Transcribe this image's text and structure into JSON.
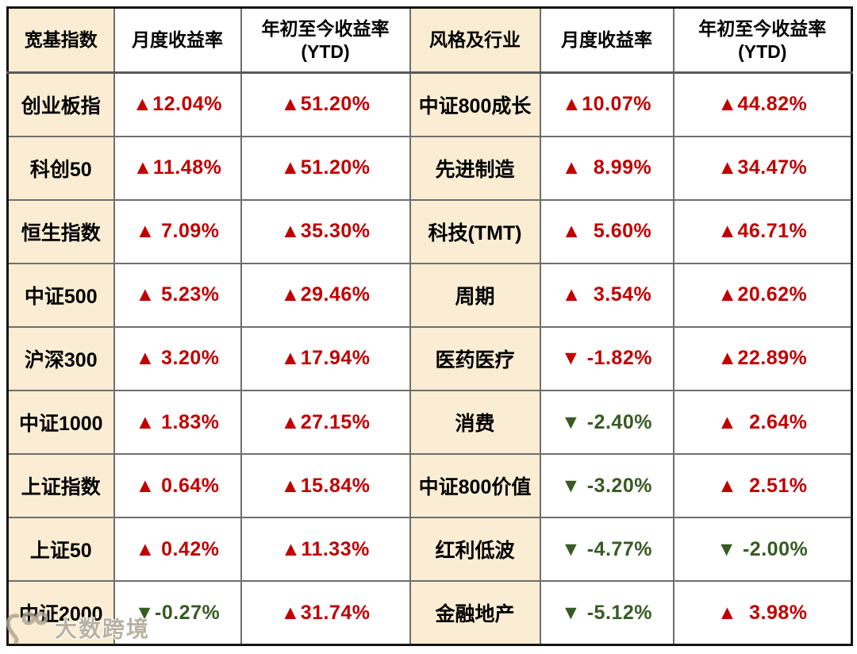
{
  "colors": {
    "positive": "#C00000",
    "negative": "#375B23",
    "highlight_bg": "#FAEDD3"
  },
  "table": {
    "headers": [
      {
        "text": "宽基指数"
      },
      {
        "text": "月度收益率"
      },
      {
        "line1": "年初至今收益率",
        "line2": "(YTD)"
      },
      {
        "text": "风格及行业"
      },
      {
        "text": "月度收益率"
      },
      {
        "line1": "年初至今收益率",
        "line2": "(YTD)"
      }
    ],
    "rows": [
      {
        "cells": [
          {
            "kind": "index-name",
            "type": "name",
            "text": "创业板指"
          },
          {
            "kind": "monthly-return",
            "type": "value",
            "color": "red",
            "text": "▲12.04%"
          },
          {
            "kind": "ytd-return",
            "type": "value",
            "color": "red",
            "text": "▲51.20%"
          },
          {
            "kind": "sector-name",
            "type": "name",
            "text": "中证800成长"
          },
          {
            "kind": "monthly-return",
            "type": "value",
            "color": "red",
            "text": "▲10.07%"
          },
          {
            "kind": "ytd-return",
            "type": "value",
            "color": "red",
            "text": "▲44.82%"
          }
        ]
      },
      {
        "cells": [
          {
            "kind": "index-name",
            "type": "name",
            "text": "科创50"
          },
          {
            "kind": "monthly-return",
            "type": "value",
            "color": "red",
            "text": "▲11.48%"
          },
          {
            "kind": "ytd-return",
            "type": "value",
            "color": "red",
            "text": "▲51.20%"
          },
          {
            "kind": "sector-name",
            "type": "name",
            "text": "先进制造"
          },
          {
            "kind": "monthly-return",
            "type": "value",
            "color": "red",
            "text": "▲  8.99%"
          },
          {
            "kind": "ytd-return",
            "type": "value",
            "color": "red",
            "text": "▲34.47%"
          }
        ]
      },
      {
        "cells": [
          {
            "kind": "index-name",
            "type": "name",
            "text": "恒生指数"
          },
          {
            "kind": "monthly-return",
            "type": "value",
            "color": "red",
            "text": "▲ 7.09%"
          },
          {
            "kind": "ytd-return",
            "type": "value",
            "color": "red",
            "text": "▲35.30%"
          },
          {
            "kind": "sector-name",
            "type": "name",
            "text": "科技(TMT)"
          },
          {
            "kind": "monthly-return",
            "type": "value",
            "color": "red",
            "text": "▲  5.60%"
          },
          {
            "kind": "ytd-return",
            "type": "value",
            "color": "red",
            "text": "▲46.71%"
          }
        ]
      },
      {
        "cells": [
          {
            "kind": "index-name",
            "type": "name",
            "text": "中证500"
          },
          {
            "kind": "monthly-return",
            "type": "value",
            "color": "red",
            "text": "▲ 5.23%"
          },
          {
            "kind": "ytd-return",
            "type": "value",
            "color": "red",
            "text": "▲29.46%"
          },
          {
            "kind": "sector-name",
            "type": "name",
            "text": "周期"
          },
          {
            "kind": "monthly-return",
            "type": "value",
            "color": "red",
            "text": "▲  3.54%"
          },
          {
            "kind": "ytd-return",
            "type": "value",
            "color": "red",
            "text": "▲20.62%"
          }
        ]
      },
      {
        "cells": [
          {
            "kind": "index-name",
            "type": "name",
            "text": "沪深300"
          },
          {
            "kind": "monthly-return",
            "type": "value",
            "color": "red",
            "text": "▲ 3.20%"
          },
          {
            "kind": "ytd-return",
            "type": "value",
            "color": "red",
            "text": "▲17.94%"
          },
          {
            "kind": "sector-name",
            "type": "name",
            "text": "医药医疗"
          },
          {
            "kind": "monthly-return",
            "type": "value",
            "color": "red",
            "text": "▼ -1.82%"
          },
          {
            "kind": "ytd-return",
            "type": "value",
            "color": "red",
            "text": "▲22.89%"
          }
        ]
      },
      {
        "cells": [
          {
            "kind": "index-name",
            "type": "name",
            "text": "中证1000"
          },
          {
            "kind": "monthly-return",
            "type": "value",
            "color": "red",
            "text": "▲ 1.83%"
          },
          {
            "kind": "ytd-return",
            "type": "value",
            "color": "red",
            "text": "▲27.15%"
          },
          {
            "kind": "sector-name",
            "type": "name",
            "text": "消费"
          },
          {
            "kind": "monthly-return",
            "type": "value",
            "color": "green",
            "text": "▼ -2.40%"
          },
          {
            "kind": "ytd-return",
            "type": "value",
            "color": "red",
            "text": "▲  2.64%"
          }
        ]
      },
      {
        "cells": [
          {
            "kind": "index-name",
            "type": "name",
            "text": "上证指数"
          },
          {
            "kind": "monthly-return",
            "type": "value",
            "color": "red",
            "text": "▲ 0.64%"
          },
          {
            "kind": "ytd-return",
            "type": "value",
            "color": "red",
            "text": "▲15.84%"
          },
          {
            "kind": "sector-name",
            "type": "name",
            "text": "中证800价值"
          },
          {
            "kind": "monthly-return",
            "type": "value",
            "color": "green",
            "text": "▼ -3.20%"
          },
          {
            "kind": "ytd-return",
            "type": "value",
            "color": "red",
            "text": "▲  2.51%"
          }
        ]
      },
      {
        "cells": [
          {
            "kind": "index-name",
            "type": "name",
            "text": "上证50"
          },
          {
            "kind": "monthly-return",
            "type": "value",
            "color": "red",
            "text": "▲ 0.42%"
          },
          {
            "kind": "ytd-return",
            "type": "value",
            "color": "red",
            "text": "▲11.33%"
          },
          {
            "kind": "sector-name",
            "type": "name",
            "text": "红利低波"
          },
          {
            "kind": "monthly-return",
            "type": "value",
            "color": "green",
            "text": "▼ -4.77%"
          },
          {
            "kind": "ytd-return",
            "type": "value",
            "color": "green",
            "text": "▼ -2.00%"
          }
        ]
      },
      {
        "cells": [
          {
            "kind": "index-name",
            "type": "name",
            "text": "中证2000"
          },
          {
            "kind": "monthly-return",
            "type": "value",
            "color": "green",
            "text": "▼-0.27%"
          },
          {
            "kind": "ytd-return",
            "type": "value",
            "color": "red",
            "text": "▲31.74%"
          },
          {
            "kind": "sector-name",
            "type": "name",
            "text": "金融地产"
          },
          {
            "kind": "monthly-return",
            "type": "value",
            "color": "green",
            "text": "▼ -5.12%"
          },
          {
            "kind": "ytd-return",
            "type": "value",
            "color": "red",
            "text": "▲  3.98%"
          }
        ]
      }
    ]
  },
  "watermark": {
    "text": "大数跨境"
  },
  "chart_data": {
    "type": "table",
    "columns": [
      "宽基指数",
      "月度收益率",
      "年初至今收益率(YTD)",
      "风格及行业",
      "月度收益率",
      "年初至今收益率(YTD)"
    ],
    "rows": [
      [
        "创业板指",
        12.04,
        51.2,
        "中证800成长",
        10.07,
        44.82
      ],
      [
        "科创50",
        11.48,
        51.2,
        "先进制造",
        8.99,
        34.47
      ],
      [
        "恒生指数",
        7.09,
        35.3,
        "科技(TMT)",
        5.6,
        46.71
      ],
      [
        "中证500",
        5.23,
        29.46,
        "周期",
        3.54,
        20.62
      ],
      [
        "沪深300",
        3.2,
        17.94,
        "医药医疗",
        -1.82,
        22.89
      ],
      [
        "中证1000",
        1.83,
        27.15,
        "消费",
        -2.4,
        2.64
      ],
      [
        "上证指数",
        0.64,
        15.84,
        "中证800价值",
        -3.2,
        2.51
      ],
      [
        "上证50",
        0.42,
        11.33,
        "红利低波",
        -4.77,
        -2.0
      ],
      [
        "中证2000",
        -0.27,
        31.74,
        "金融地产",
        -5.12,
        3.98
      ]
    ]
  }
}
